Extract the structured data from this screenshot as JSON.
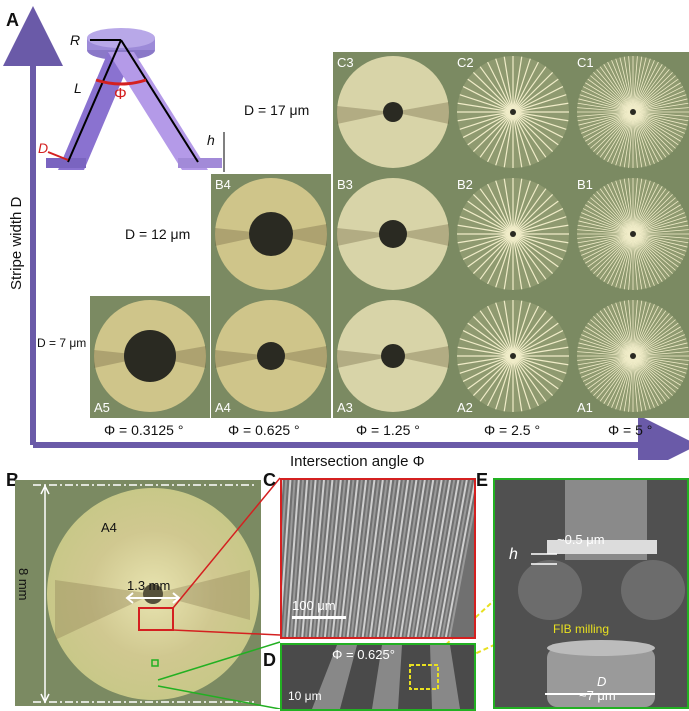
{
  "panel_labels": {
    "a": "A",
    "b": "B",
    "c": "C",
    "d": "D",
    "e": "E"
  },
  "axes": {
    "y_label": "Stripe width D",
    "x_label": "Intersection angle Φ"
  },
  "schematic": {
    "R": "R",
    "L": "L",
    "phi": "Φ",
    "D": "D",
    "h": "h"
  },
  "row_labels": {
    "d17": "D = 17 μm",
    "d12": "D = 12 μm",
    "d7": "D = 7 μm"
  },
  "col_labels": [
    "Φ = 0.3125 °",
    "Φ = 0.625 °",
    "Φ = 1.25 °",
    "Φ = 2.5 °",
    "Φ = 5 °"
  ],
  "tiles": {
    "C3": "C3",
    "C2": "C2",
    "C1": "C1",
    "B4": "B4",
    "B3": "B3",
    "B2": "B2",
    "B1": "B1",
    "A5": "A5",
    "A4": "A4",
    "A3": "A3",
    "A2": "A2",
    "A1": "A1"
  },
  "panel_b": {
    "sample": "A4",
    "diameter": "8 mm",
    "hole": "1.3 mm"
  },
  "panel_c": {
    "scale": "100 μm"
  },
  "panel_d": {
    "angle": "Φ = 0.625°",
    "scale": "10 μm"
  },
  "panel_e": {
    "h": "h",
    "thick": "~0.5 μm",
    "fib": "FIB milling",
    "D": "D",
    "width": "~7 μm"
  },
  "colors": {
    "frame": "#6a5aa8",
    "tile_bg": "#7b8a62",
    "red": "#d42020",
    "green": "#22b022",
    "yellow": "#e8e020"
  }
}
